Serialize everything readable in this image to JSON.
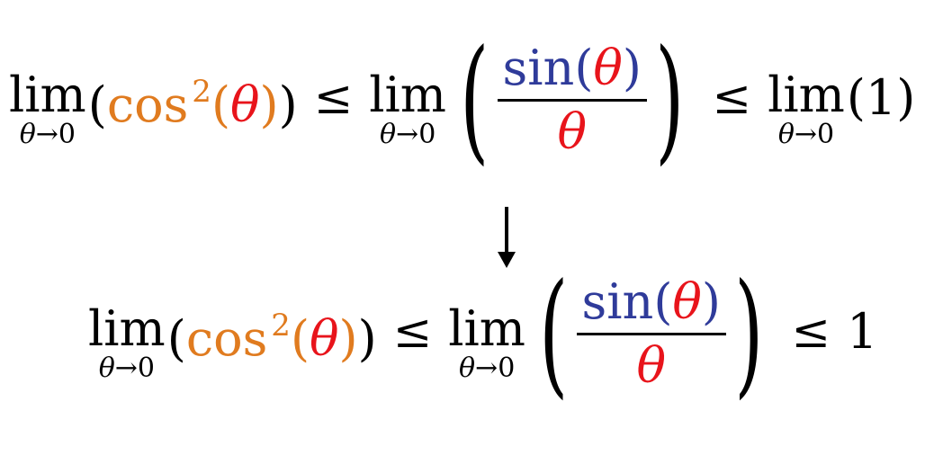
{
  "equations": {
    "top": {
      "left_limit": {
        "word": "lim",
        "var": "θ",
        "arrow": "→",
        "to": "0"
      },
      "left_expr": {
        "func": "cos",
        "power": "2",
        "open": "(",
        "arg": "θ",
        "close": ")",
        "outer_open": "(",
        "outer_close": ")"
      },
      "leq_1": "≤",
      "mid_limit": {
        "word": "lim",
        "var": "θ",
        "arrow": "→",
        "to": "0"
      },
      "mid_frac": {
        "numer_func": "sin",
        "numer_open": "(",
        "numer_arg": "θ",
        "numer_close": ")",
        "denom": "θ",
        "paren_open": "(",
        "paren_close": ")"
      },
      "leq_2": "≤",
      "right_limit": {
        "word": "lim",
        "var": "θ",
        "arrow": "→",
        "to": "0"
      },
      "right_expr": "(1)"
    },
    "bottom": {
      "left_limit": {
        "word": "lim",
        "var": "θ",
        "arrow": "→",
        "to": "0"
      },
      "left_expr": {
        "func": "cos",
        "power": "2",
        "open": "(",
        "arg": "θ",
        "close": ")",
        "outer_open": "(",
        "outer_close": ")"
      },
      "leq_1": "≤",
      "mid_limit": {
        "word": "lim",
        "var": "θ",
        "arrow": "→",
        "to": "0"
      },
      "mid_frac": {
        "numer_func": "sin",
        "numer_open": "(",
        "numer_arg": "θ",
        "numer_close": ")",
        "denom": "θ",
        "paren_open": "(",
        "paren_close": ")"
      },
      "leq_2": "≤",
      "right_value": "1"
    }
  },
  "colors": {
    "cos_term": "#e07b1f",
    "sin_term": "#2f3b9a",
    "theta": "#e8141b",
    "text": "#000000"
  },
  "icons": {
    "transition": "down-arrow-icon"
  }
}
